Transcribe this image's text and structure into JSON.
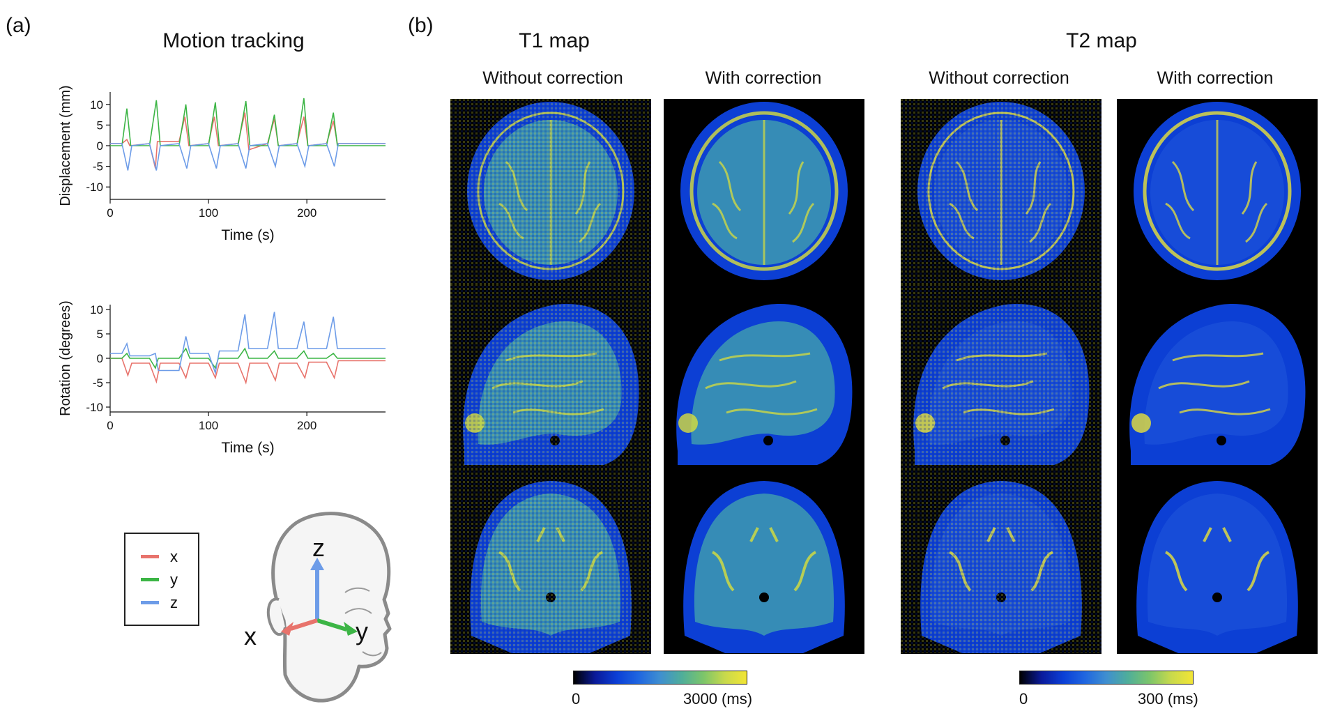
{
  "panel_a": {
    "label": "(a)",
    "title": "Motion tracking",
    "legend": [
      {
        "name": "x",
        "color": "#e8736c"
      },
      {
        "name": "y",
        "color": "#3cb545"
      },
      {
        "name": "z",
        "color": "#6d9ce8"
      }
    ],
    "head_axes": {
      "x": "x",
      "y": "y",
      "z": "z"
    }
  },
  "chart_data": [
    {
      "type": "line",
      "ylabel": "Displacement (mm)",
      "xlabel": "Time (s)",
      "xlim": [
        0,
        280
      ],
      "ylim": [
        -13,
        13
      ],
      "xticks": [
        0,
        100,
        200
      ],
      "yticks": [
        10,
        5,
        0,
        -5,
        -10
      ],
      "grid": false,
      "series": [
        {
          "name": "x",
          "color": "#e8736c",
          "points": [
            [
              0,
              0.5
            ],
            [
              12,
              0.5
            ],
            [
              17,
              1.5
            ],
            [
              20,
              0
            ],
            [
              40,
              0.5
            ],
            [
              46,
              -5.5
            ],
            [
              48,
              1
            ],
            [
              70,
              1
            ],
            [
              76,
              7
            ],
            [
              80,
              0
            ],
            [
              100,
              0.5
            ],
            [
              106,
              7
            ],
            [
              110,
              0
            ],
            [
              130,
              0.5
            ],
            [
              137,
              8
            ],
            [
              141,
              -1
            ],
            [
              160,
              0.5
            ],
            [
              167,
              6.5
            ],
            [
              171,
              0
            ],
            [
              190,
              0.5
            ],
            [
              197,
              7
            ],
            [
              201,
              0
            ],
            [
              220,
              0.5
            ],
            [
              227,
              6
            ],
            [
              231,
              0.5
            ],
            [
              280,
              0.5
            ]
          ]
        },
        {
          "name": "y",
          "color": "#3cb545",
          "points": [
            [
              0,
              0
            ],
            [
              12,
              0
            ],
            [
              17,
              9
            ],
            [
              21,
              0
            ],
            [
              40,
              0
            ],
            [
              47,
              11
            ],
            [
              51,
              0
            ],
            [
              70,
              0
            ],
            [
              77,
              10
            ],
            [
              81,
              0
            ],
            [
              100,
              0
            ],
            [
              107,
              10.5
            ],
            [
              111,
              0
            ],
            [
              130,
              0
            ],
            [
              138,
              10.8
            ],
            [
              142,
              0
            ],
            [
              160,
              0
            ],
            [
              167,
              7.5
            ],
            [
              171,
              0
            ],
            [
              190,
              0
            ],
            [
              197,
              11.5
            ],
            [
              201,
              0
            ],
            [
              220,
              0
            ],
            [
              227,
              8
            ],
            [
              231,
              0
            ],
            [
              280,
              0
            ]
          ]
        },
        {
          "name": "z",
          "color": "#6d9ce8",
          "points": [
            [
              0,
              0.5
            ],
            [
              12,
              0.5
            ],
            [
              18,
              -6
            ],
            [
              22,
              0
            ],
            [
              40,
              0.5
            ],
            [
              47,
              -6
            ],
            [
              51,
              0
            ],
            [
              70,
              0.5
            ],
            [
              78,
              -5.5
            ],
            [
              82,
              0
            ],
            [
              100,
              0.5
            ],
            [
              108,
              -5.5
            ],
            [
              112,
              0
            ],
            [
              130,
              0.5
            ],
            [
              138,
              -5.5
            ],
            [
              142,
              0
            ],
            [
              160,
              0.5
            ],
            [
              168,
              -5
            ],
            [
              172,
              0
            ],
            [
              190,
              0.5
            ],
            [
              198,
              -5
            ],
            [
              202,
              0
            ],
            [
              220,
              0.5
            ],
            [
              228,
              -5
            ],
            [
              232,
              0.5
            ],
            [
              280,
              0.5
            ]
          ]
        }
      ]
    },
    {
      "type": "line",
      "ylabel": "Rotation (degrees)",
      "xlabel": "Time (s)",
      "xlim": [
        0,
        280
      ],
      "ylim": [
        -11,
        11
      ],
      "xticks": [
        0,
        100,
        200
      ],
      "yticks": [
        10,
        5,
        0,
        -5,
        -10
      ],
      "grid": false,
      "series": [
        {
          "name": "x",
          "color": "#e8736c",
          "points": [
            [
              0,
              0
            ],
            [
              12,
              0
            ],
            [
              18,
              -3.5
            ],
            [
              22,
              -1
            ],
            [
              40,
              -1
            ],
            [
              47,
              -4.8
            ],
            [
              51,
              -1
            ],
            [
              70,
              -1
            ],
            [
              77,
              -4
            ],
            [
              81,
              -1
            ],
            [
              100,
              -1
            ],
            [
              107,
              -4
            ],
            [
              111,
              -1
            ],
            [
              130,
              -1
            ],
            [
              138,
              -5
            ],
            [
              142,
              -1
            ],
            [
              160,
              -1
            ],
            [
              168,
              -4.5
            ],
            [
              172,
              -1
            ],
            [
              190,
              -1
            ],
            [
              198,
              -4
            ],
            [
              202,
              -0.8
            ],
            [
              220,
              -0.8
            ],
            [
              228,
              -4
            ],
            [
              232,
              -0.5
            ],
            [
              280,
              -0.5
            ]
          ]
        },
        {
          "name": "y",
          "color": "#3cb545",
          "points": [
            [
              0,
              0
            ],
            [
              12,
              0
            ],
            [
              17,
              1
            ],
            [
              20,
              0
            ],
            [
              40,
              0
            ],
            [
              46,
              -2
            ],
            [
              49,
              0
            ],
            [
              70,
              0
            ],
            [
              77,
              2
            ],
            [
              81,
              0
            ],
            [
              100,
              0
            ],
            [
              107,
              -2
            ],
            [
              110,
              0
            ],
            [
              130,
              0
            ],
            [
              137,
              2
            ],
            [
              141,
              0
            ],
            [
              160,
              0
            ],
            [
              167,
              1.5
            ],
            [
              171,
              0
            ],
            [
              190,
              0
            ],
            [
              197,
              1.5
            ],
            [
              201,
              0
            ],
            [
              220,
              0
            ],
            [
              227,
              1
            ],
            [
              231,
              0
            ],
            [
              280,
              0
            ]
          ]
        },
        {
          "name": "z",
          "color": "#6d9ce8",
          "points": [
            [
              0,
              1
            ],
            [
              12,
              1
            ],
            [
              17,
              3
            ],
            [
              20,
              0.5
            ],
            [
              40,
              0.5
            ],
            [
              46,
              1
            ],
            [
              49,
              -2.5
            ],
            [
              70,
              -2.5
            ],
            [
              77,
              4.5
            ],
            [
              81,
              1
            ],
            [
              100,
              1
            ],
            [
              107,
              -3
            ],
            [
              111,
              1.5
            ],
            [
              130,
              1.5
            ],
            [
              137,
              9
            ],
            [
              141,
              2
            ],
            [
              160,
              2
            ],
            [
              167,
              9.5
            ],
            [
              171,
              2
            ],
            [
              190,
              2
            ],
            [
              197,
              7.5
            ],
            [
              201,
              2
            ],
            [
              220,
              2
            ],
            [
              227,
              8.5
            ],
            [
              231,
              2
            ],
            [
              280,
              2
            ]
          ]
        }
      ]
    }
  ],
  "panel_b": {
    "label": "(b)",
    "groups": [
      {
        "title": "T1 map",
        "columns": [
          "Without correction",
          "With correction"
        ],
        "colorbar": {
          "min_label": "0",
          "max_label": "3000 (ms)"
        }
      },
      {
        "title": "T2 map",
        "columns": [
          "Without correction",
          "With correction"
        ],
        "colorbar": {
          "min_label": "0",
          "max_label": "300 (ms)"
        }
      }
    ],
    "colormap": [
      "#000000",
      "#0a1a9a",
      "#0b3fd6",
      "#1f66e0",
      "#3f8fd0",
      "#4fae9a",
      "#7cc56a",
      "#c8d94c",
      "#f2e535"
    ]
  }
}
